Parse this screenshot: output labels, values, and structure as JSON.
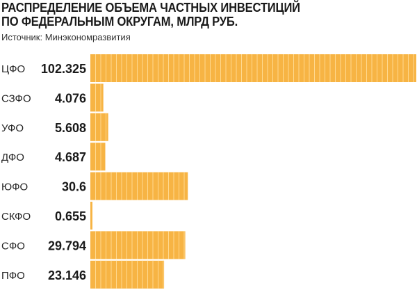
{
  "header": {
    "title_line1": "РАСПРЕДЕЛЕНИЕ ОБЪЕМА ЧАСТНЫХ ИНВЕСТИЦИЙ",
    "title_line2": "ПО ФЕДЕРАЛЬНЫМ ОКРУГАМ, МЛРД РУБ.",
    "source": "Источник: Минэкономразвития"
  },
  "colors": {
    "bar": "#f7b444",
    "bar_stripe": "#ffd98f",
    "text": "#1a1a1a"
  },
  "chart_data": {
    "type": "bar",
    "orientation": "horizontal",
    "title": "РАСПРЕДЕЛЕНИЕ ОБЪЕМА ЧАСТНЫХ ИНВЕСТИЦИЙ ПО ФЕДЕРАЛЬНЫМ ОКРУГАМ, МЛРД РУБ.",
    "categories": [
      "ЦФО",
      "СЗФО",
      "УФО",
      "ДФО",
      "ЮФО",
      "СКФО",
      "СФО",
      "ПФО"
    ],
    "values": [
      102.325,
      4.076,
      5.608,
      4.687,
      30.6,
      0.655,
      29.794,
      23.146
    ],
    "value_labels": [
      "102.325",
      "4.076",
      "5.608",
      "4.687",
      "30.6",
      "0.655",
      "29.794",
      "23.146"
    ],
    "xlabel": "",
    "ylabel": "",
    "grid": false,
    "legend": "none"
  }
}
